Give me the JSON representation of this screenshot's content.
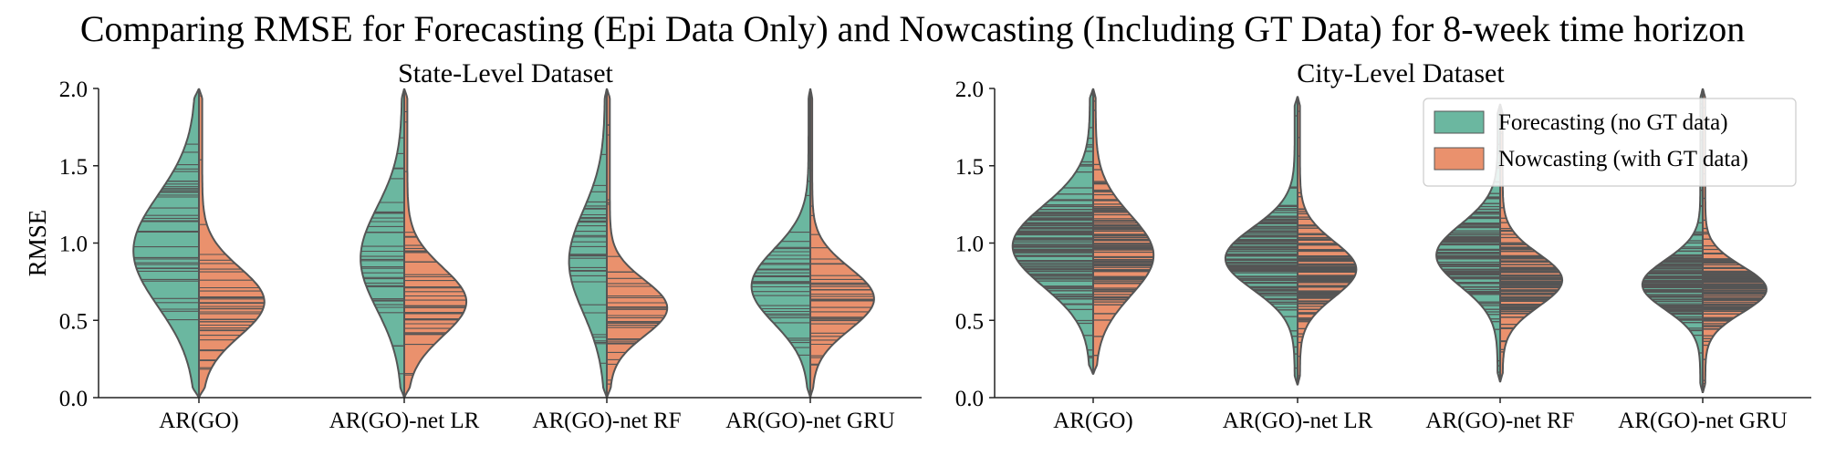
{
  "title": "Comparing RMSE for Forecasting (Epi Data Only) and Nowcasting (Including GT Data) for 8-week time horizon",
  "colors": {
    "forecast": "#6bb7a0",
    "nowcast": "#ea916d",
    "outline": "#555555",
    "axis": "#222222"
  },
  "legend": {
    "position": "upper-right of right panel",
    "items": [
      {
        "label": "Forecasting (no GT data)",
        "color": "#6bb7a0"
      },
      {
        "label": "Nowcasting (with GT data)",
        "color": "#ea916d"
      }
    ]
  },
  "chart_data": [
    {
      "type": "split-violin",
      "title": "State-Level Dataset",
      "xlabel": "",
      "ylabel": "RMSE",
      "ylim": [
        0,
        2.0
      ],
      "yticks": [
        "0.0",
        "0.5",
        "1.0",
        "1.5",
        "2.0"
      ],
      "categories": [
        "AR(GO)",
        "AR(GO)-net LR",
        "AR(GO)-net RF",
        "AR(GO)-net GRU"
      ],
      "grid": false,
      "series": [
        {
          "name": "Forecasting (no GT data)",
          "median": [
            0.95,
            0.9,
            0.9,
            0.72
          ],
          "range": [
            [
              0.0,
              2.0
            ],
            [
              0.0,
              2.0
            ],
            [
              0.0,
              2.0
            ],
            [
              0.0,
              2.0
            ]
          ]
        },
        {
          "name": "Nowcasting (with GT data)",
          "median": [
            0.65,
            0.65,
            0.6,
            0.62
          ],
          "range": [
            [
              0.0,
              2.0
            ],
            [
              0.0,
              2.0
            ],
            [
              0.0,
              2.0
            ],
            [
              0.0,
              2.0
            ]
          ]
        }
      ]
    },
    {
      "type": "split-violin",
      "title": "City-Level Dataset",
      "xlabel": "",
      "ylabel": "",
      "ylim": [
        0,
        2.0
      ],
      "yticks": [
        "0.0",
        "0.5",
        "1.0",
        "1.5",
        "2.0"
      ],
      "categories": [
        "AR(GO)",
        "AR(GO)-net LR",
        "AR(GO)-net RF",
        "AR(GO)-net GRU"
      ],
      "grid": false,
      "series": [
        {
          "name": "Forecasting (no GT data)",
          "median": [
            0.95,
            0.88,
            0.9,
            0.72
          ],
          "range": [
            [
              0.15,
              2.0
            ],
            [
              0.08,
              1.95
            ],
            [
              0.1,
              1.9
            ],
            [
              0.03,
              2.0
            ]
          ]
        },
        {
          "name": "Nowcasting (with GT data)",
          "median": [
            0.92,
            0.82,
            0.78,
            0.7
          ],
          "range": [
            [
              0.15,
              2.0
            ],
            [
              0.08,
              1.95
            ],
            [
              0.1,
              1.9
            ],
            [
              0.03,
              2.0
            ]
          ]
        }
      ]
    }
  ]
}
